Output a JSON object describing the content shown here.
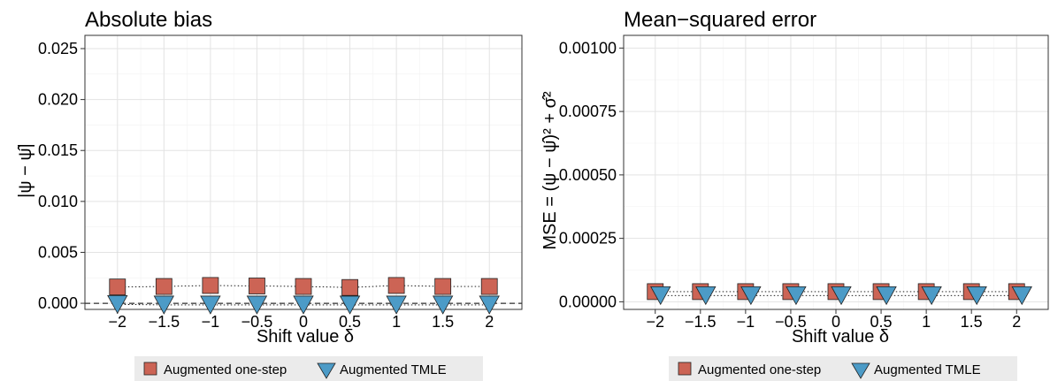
{
  "chart_data": [
    {
      "type": "scatter",
      "title": "Absolute bias",
      "xlabel": "Shift value δ",
      "ylabel": "|ψ − ψ̂|",
      "categories": [
        "−2",
        "−1.5",
        "−1",
        "−0.5",
        "0",
        "0.5",
        "1",
        "1.5",
        "2"
      ],
      "x": [
        -2,
        -1.5,
        -1,
        -0.5,
        0,
        0.5,
        1,
        1.5,
        2
      ],
      "xlim": [
        -2.35,
        2.35
      ],
      "ylim": [
        -0.0006,
        0.0263
      ],
      "yticks": [
        0,
        0.005,
        0.01,
        0.015,
        0.02,
        0.025
      ],
      "ytick_labels": [
        "0.000",
        "0.005",
        "0.010",
        "0.015",
        "0.020",
        "0.025"
      ],
      "reference_line": 0,
      "grid": true,
      "series": [
        {
          "name": "Augmented one-step",
          "marker": "square",
          "color": "#CC6455",
          "values": [
            0.0016,
            0.00165,
            0.00175,
            0.0017,
            0.00165,
            0.00155,
            0.00175,
            0.00165,
            0.00165
          ]
        },
        {
          "name": "Augmented TMLE",
          "marker": "triangle-down",
          "color": "#4C9BC7",
          "values": [
            0.00015,
            0.0001,
            0.0001,
            0.0001,
            0.0001,
            0.0001,
            0.0001,
            0.0001,
            0.0001
          ]
        }
      ]
    },
    {
      "type": "scatter",
      "title": "Mean−squared error",
      "xlabel": "Shift value δ",
      "ylabel": "MSE = (ψ − ψ̂)² + σ̂²",
      "categories": [
        "−2",
        "−1.5",
        "−1",
        "−0.5",
        "0",
        "0.5",
        "1",
        "1.5",
        "2"
      ],
      "x": [
        -2,
        -1.5,
        -1,
        -0.5,
        0,
        0.5,
        1,
        1.5,
        2
      ],
      "xlim": [
        -2.35,
        2.35
      ],
      "ylim": [
        -3e-05,
        0.00105
      ],
      "yticks": [
        0,
        0.00025,
        0.0005,
        0.00075,
        0.001
      ],
      "ytick_labels": [
        "0.00000",
        "0.00025",
        "0.00050",
        "0.00075",
        "0.00100"
      ],
      "grid": true,
      "series": [
        {
          "name": "Augmented one-step",
          "marker": "square",
          "color": "#CC6455",
          "values": [
            4e-05,
            4e-05,
            4e-05,
            4e-05,
            4e-05,
            4e-05,
            4e-05,
            4e-05,
            4e-05
          ]
        },
        {
          "name": "Augmented TMLE",
          "marker": "triangle-down",
          "color": "#4C9BC7",
          "values": [
            3.5e-05,
            3.5e-05,
            3.5e-05,
            3.5e-05,
            3.5e-05,
            3.5e-05,
            3.5e-05,
            3.5e-05,
            3.5e-05
          ]
        }
      ]
    }
  ],
  "legend": {
    "placement": "bottom",
    "items": [
      {
        "label": "Augmented one-step",
        "marker": "square",
        "color": "#CC6455"
      },
      {
        "label": "Augmented TMLE",
        "marker": "triangle-down",
        "color": "#4C9BC7"
      }
    ]
  }
}
